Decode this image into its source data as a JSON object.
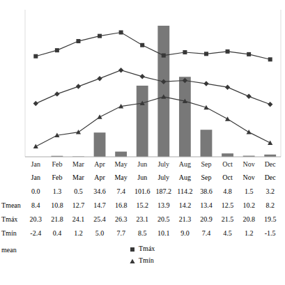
{
  "chart_data": {
    "type": "bar",
    "categories": [
      "Jan",
      "Feb",
      "Mar",
      "Apr",
      "May",
      "Jun",
      "July",
      "Aug",
      "Sep",
      "Oct",
      "Nov",
      "Dec"
    ],
    "series": [
      {
        "type": "bar",
        "axis": "y",
        "color": "#787878",
        "values": [
          0.0,
          1.3,
          0.5,
          34.6,
          7.4,
          101.6,
          187.2,
          114.2,
          38.6,
          4.8,
          1.5,
          3.2
        ]
      },
      {
        "name": "Tmáx",
        "type": "line",
        "axis": "y2",
        "color": "#383838",
        "marker": "square",
        "values": [
          20.3,
          21.8,
          24.1,
          25.4,
          26.3,
          23.1,
          20.5,
          21.3,
          20.9,
          21.5,
          20.8,
          19.5
        ]
      },
      {
        "type": "line",
        "axis": "y2",
        "color": "#383838",
        "marker": "diamond",
        "values": [
          8.4,
          10.8,
          12.7,
          14.7,
          16.8,
          15.2,
          13.9,
          14.2,
          13.4,
          12.5,
          10.2,
          8.2
        ]
      },
      {
        "name": "Tmín",
        "type": "line",
        "axis": "y2",
        "color": "#383838",
        "marker": "triangle",
        "values": [
          -2.4,
          0.4,
          1.2,
          5.0,
          7.7,
          8.5,
          10.1,
          9.0,
          7.4,
          4.5,
          1.2,
          -1.5
        ]
      }
    ],
    "ylim": [
      0,
      210
    ],
    "y2lim": [
      -5,
      32
    ],
    "grid": false,
    "tick_labels": "x",
    "legend": "bottom",
    "table": {
      "rows": [
        {
          "cells": [
            "0.0",
            "1.3",
            "0.5",
            "34.6",
            "7.4",
            "101.6",
            "187.2",
            "114.2",
            "38.6",
            "4.8",
            "1.5",
            "3.2"
          ]
        },
        {
          "label": "Tmean",
          "cells": [
            "8.4",
            "10.8",
            "12.7",
            "14.7",
            "16.8",
            "15.2",
            "13.9",
            "14.2",
            "13.4",
            "12.5",
            "10.2",
            "8.2"
          ]
        },
        {
          "label": "Tmáx",
          "cells": [
            "20.3",
            "21.8",
            "24.1",
            "25.4",
            "26.3",
            "23.1",
            "20.5",
            "21.3",
            "20.9",
            "21.5",
            "20.8",
            "19.5"
          ]
        },
        {
          "label": "Tmín",
          "cells": [
            "-2.4",
            "0.4",
            "1.2",
            "5.0",
            "7.7",
            "8.5",
            "10.1",
            "9.0",
            "7.4",
            "4.5",
            "1.2",
            "-1.5"
          ]
        }
      ]
    },
    "annotations": [
      "mean"
    ]
  }
}
